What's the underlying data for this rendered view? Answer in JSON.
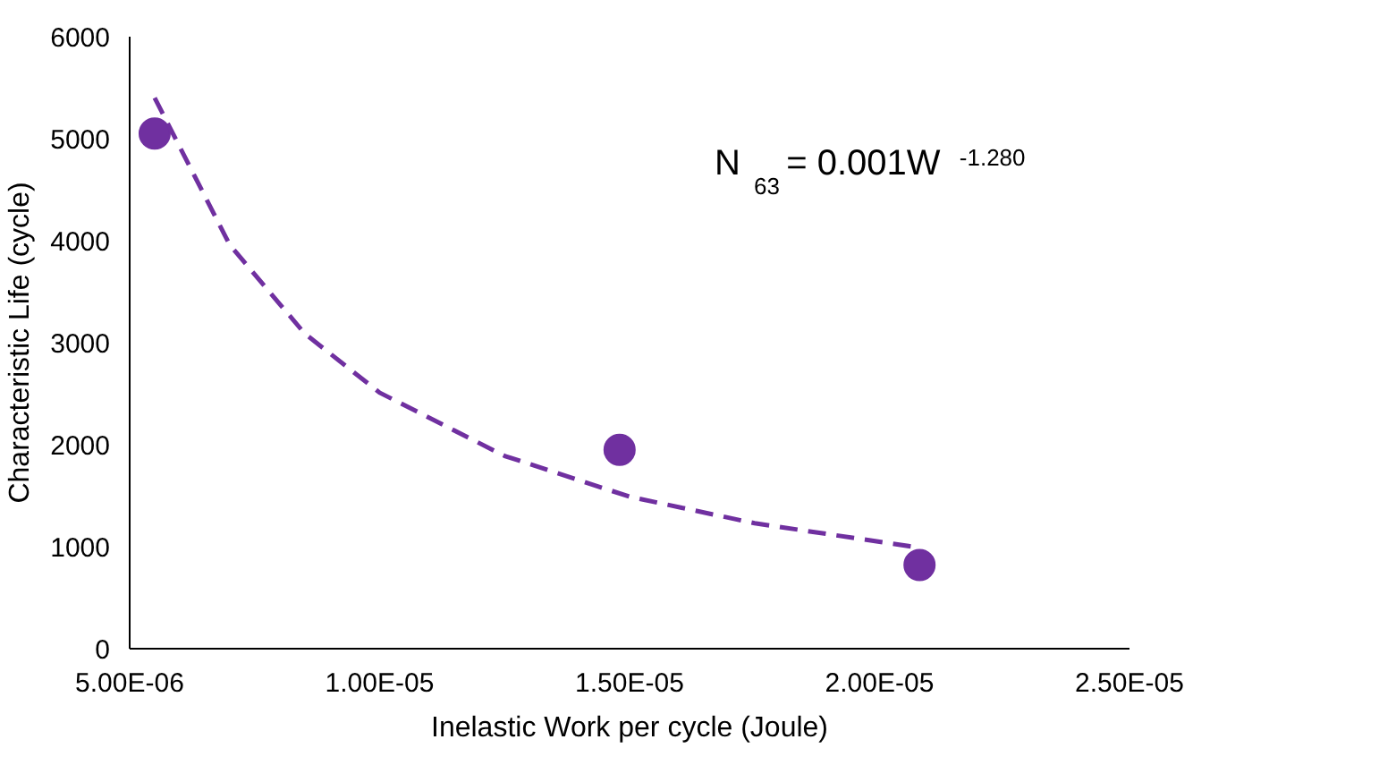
{
  "chart_data": {
    "type": "scatter",
    "xlabel": "Inelastic Work per cycle (Joule)",
    "ylabel": "Characteristic Life (cycle)",
    "annotations": [
      "N$_{63}$ = 0.001W$^{-1.280}$"
    ],
    "x": [
      5.5e-06,
      1.48e-05,
      2.08e-05
    ],
    "series": [
      {
        "color": "#7030a0",
        "values": [
          5050,
          1950,
          820
        ],
        "marker": "circle"
      },
      {
        "type": "line",
        "color": "#7030a0",
        "line_style": "dashed",
        "x": [
          5.5e-06,
          7e-06,
          8.5e-06,
          1e-05,
          1.25e-05,
          1.5e-05,
          1.75e-05,
          2.08e-05
        ],
        "values": [
          5400,
          3960,
          3090,
          2510,
          1890,
          1490,
          1230,
          990
        ]
      }
    ],
    "xlim": [
      5e-06,
      2.5e-05
    ],
    "ylim": [
      0,
      6000
    ],
    "xticks": [
      {
        "value": 5e-06,
        "label": "5.00E-06"
      },
      {
        "value": 1e-05,
        "label": "1.00E-05"
      },
      {
        "value": 1.5e-05,
        "label": "1.50E-05"
      },
      {
        "value": 2e-05,
        "label": "2.00E-05"
      },
      {
        "value": 2.5e-05,
        "label": "2.50E-05"
      }
    ],
    "yticks": [
      0,
      1000,
      2000,
      3000,
      4000,
      5000,
      6000
    ],
    "grid": false
  }
}
